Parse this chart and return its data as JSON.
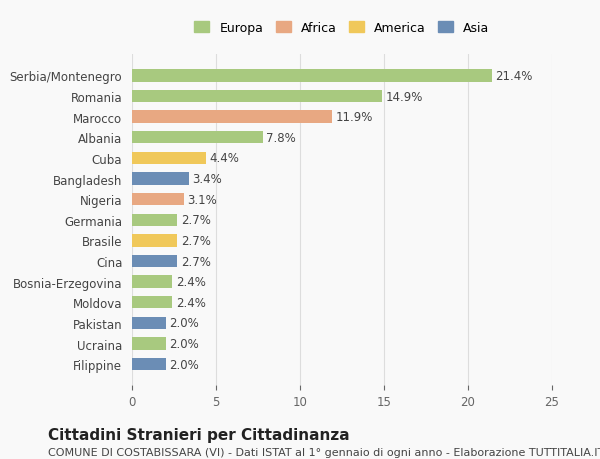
{
  "categories": [
    "Serbia/Montenegro",
    "Romania",
    "Marocco",
    "Albania",
    "Cuba",
    "Bangladesh",
    "Nigeria",
    "Germania",
    "Brasile",
    "Cina",
    "Bosnia-Erzegovina",
    "Moldova",
    "Pakistan",
    "Ucraina",
    "Filippine"
  ],
  "values": [
    21.4,
    14.9,
    11.9,
    7.8,
    4.4,
    3.4,
    3.1,
    2.7,
    2.7,
    2.7,
    2.4,
    2.4,
    2.0,
    2.0,
    2.0
  ],
  "continents": [
    "Europa",
    "Europa",
    "Africa",
    "Europa",
    "America",
    "Asia",
    "Africa",
    "Europa",
    "America",
    "Asia",
    "Europa",
    "Europa",
    "Asia",
    "Europa",
    "Asia"
  ],
  "continent_colors": {
    "Europa": "#a8c97f",
    "Africa": "#e8a882",
    "America": "#f0c85a",
    "Asia": "#6b8db5"
  },
  "legend_order": [
    "Europa",
    "Africa",
    "America",
    "Asia"
  ],
  "xlim": [
    0,
    25
  ],
  "xticks": [
    0,
    5,
    10,
    15,
    20,
    25
  ],
  "bar_height": 0.6,
  "title": "Cittadini Stranieri per Cittadinanza",
  "subtitle": "COMUNE DI COSTABISSARA (VI) - Dati ISTAT al 1° gennaio di ogni anno - Elaborazione TUTTITALIA.IT",
  "bg_color": "#f9f9f9",
  "grid_color": "#dddddd",
  "title_fontsize": 11,
  "subtitle_fontsize": 8,
  "label_fontsize": 8.5,
  "tick_fontsize": 8.5,
  "legend_fontsize": 9
}
